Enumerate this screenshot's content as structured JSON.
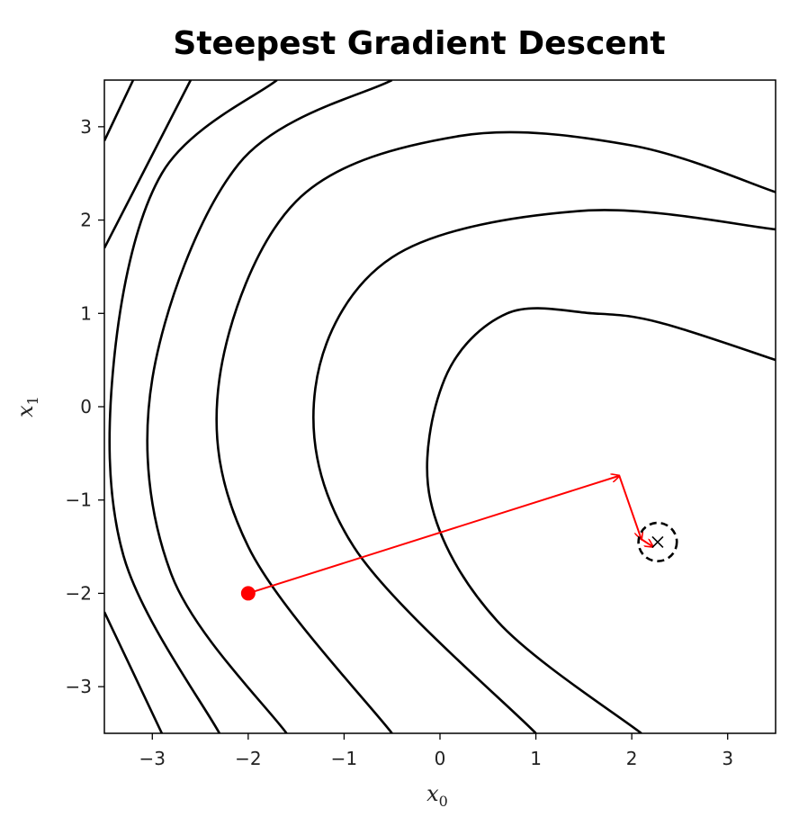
{
  "chart_data": {
    "type": "line",
    "title": "Steepest Gradient Descent",
    "xlabel": "x0",
    "xlabel_base": "x",
    "xlabel_sub": "0",
    "ylabel": "x1",
    "ylabel_base": "x",
    "ylabel_sub": "1",
    "xlim": [
      -3.5,
      3.5
    ],
    "ylim": [
      -3.5,
      3.5
    ],
    "xticks": [
      -3,
      -2,
      -1,
      0,
      1,
      2,
      3
    ],
    "yticks": [
      -3,
      -2,
      -1,
      0,
      1,
      2,
      3
    ],
    "xtick_labels": [
      "−3",
      "−2",
      "−1",
      "0",
      "1",
      "2",
      "3"
    ],
    "ytick_labels": [
      "−3",
      "−2",
      "−1",
      "0",
      "1",
      "2",
      "3"
    ],
    "grid": false,
    "contour_lines": {
      "color": "#000000",
      "curves": [
        [
          [
            2.1,
            -3.5
          ],
          [
            0.6,
            -2.3
          ],
          [
            -0.1,
            -1.0
          ],
          [
            0.05,
            0.3
          ],
          [
            0.7,
            1.0
          ],
          [
            1.6,
            1.0
          ],
          [
            2.3,
            0.9
          ],
          [
            3.5,
            0.5
          ]
        ],
        [
          [
            1.0,
            -3.5
          ],
          [
            -0.9,
            -1.5
          ],
          [
            -1.3,
            0.2
          ],
          [
            -0.5,
            1.6
          ],
          [
            1.5,
            2.1
          ],
          [
            3.5,
            1.9
          ]
        ],
        [
          [
            -0.5,
            -3.5
          ],
          [
            -2.0,
            -1.5
          ],
          [
            -2.3,
            0.3
          ],
          [
            -1.5,
            2.2
          ],
          [
            0.2,
            2.9
          ],
          [
            2.0,
            2.8
          ],
          [
            3.5,
            2.3
          ]
        ],
        [
          [
            -1.6,
            -3.5
          ],
          [
            -2.8,
            -1.8
          ],
          [
            -3.0,
            0.3
          ],
          [
            -2.1,
            2.6
          ],
          [
            -0.5,
            3.5
          ]
        ],
        [
          [
            -2.3,
            -3.5
          ],
          [
            -3.3,
            -1.6
          ],
          [
            -3.4,
            0.5
          ],
          [
            -2.9,
            2.5
          ],
          [
            -1.7,
            3.5
          ]
        ],
        [
          [
            -3.5,
            -2.2
          ],
          [
            -2.9,
            -3.5
          ]
        ],
        [
          [
            -3.5,
            1.7
          ],
          [
            -2.6,
            3.5
          ]
        ],
        [
          [
            -3.5,
            2.85
          ],
          [
            -3.2,
            3.5
          ]
        ]
      ]
    },
    "descent_path": {
      "color": "#ff0000",
      "start": [
        -2.0,
        -2.0
      ],
      "points": [
        [
          -2.0,
          -2.0
        ],
        [
          1.87,
          -0.74
        ],
        [
          2.1,
          -1.42
        ],
        [
          2.22,
          -1.5
        ]
      ]
    },
    "minimum": {
      "x": 2.27,
      "y": -1.45,
      "marker": "x",
      "circle_radius": 0.2,
      "circle_style": "dashed"
    }
  }
}
